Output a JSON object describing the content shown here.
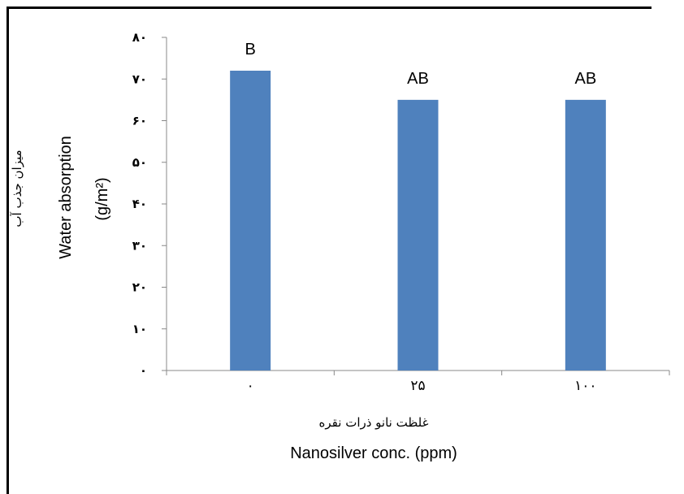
{
  "chart_data": {
    "type": "bar",
    "categories": [
      "۰",
      "۲۵",
      "۱۰۰"
    ],
    "values": [
      72,
      65,
      65
    ],
    "data_labels": [
      "B",
      "AB",
      "AB"
    ],
    "ylim": [
      0,
      80
    ],
    "yticks": [
      0,
      10,
      20,
      30,
      40,
      50,
      60,
      70,
      80
    ],
    "ytick_labels": [
      "۰",
      "۱۰",
      "۲۰",
      "۳۰",
      "۴۰",
      "۵۰",
      "۶۰",
      "۷۰",
      "۸۰"
    ],
    "xlabel_fa": "غلظت نانو ذرات نقره",
    "xlabel": "Nanosilver conc. (ppm)",
    "ylabel_fa": "میزان جذب آب",
    "ylabel": "Water absorption",
    "ylabel_unit": "(g/m²)",
    "bar_color": "#4f81bd",
    "grid": false,
    "legend": "none"
  }
}
